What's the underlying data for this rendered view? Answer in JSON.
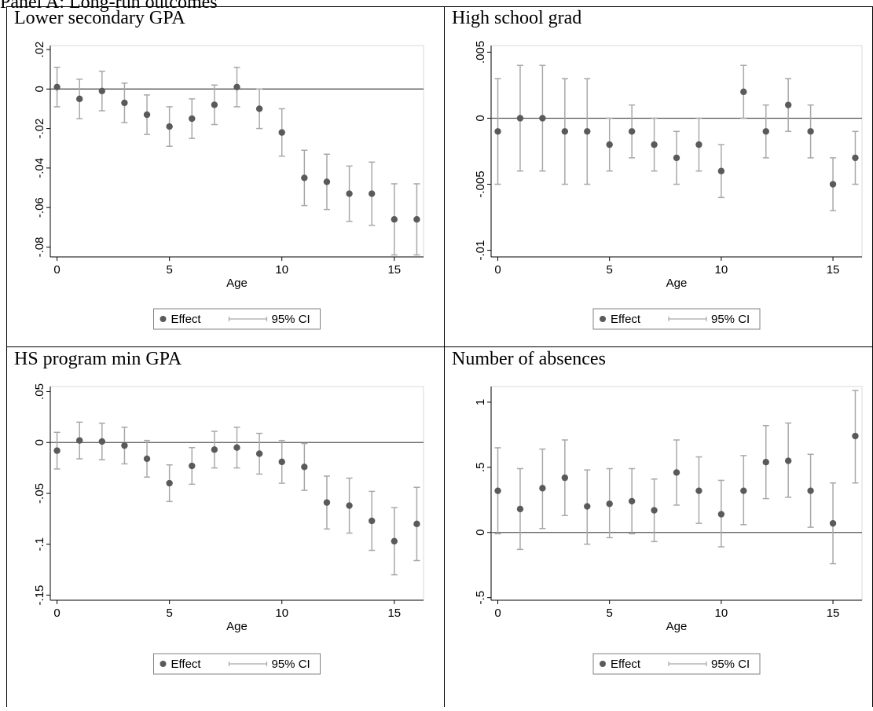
{
  "top_cropped_text": "Panel A: Long-run outcomes",
  "chart_data": [
    {
      "type": "scatter",
      "title": "Lower secondary GPA",
      "xlabel": "Age",
      "x": [
        0,
        1,
        2,
        3,
        4,
        5,
        6,
        7,
        8,
        9,
        10,
        11,
        12,
        13,
        14,
        15,
        16
      ],
      "effect": [
        0.001,
        -0.005,
        -0.001,
        -0.007,
        -0.013,
        -0.019,
        -0.015,
        -0.008,
        0.001,
        -0.01,
        -0.022,
        -0.045,
        -0.047,
        -0.053,
        -0.053,
        -0.066,
        -0.066
      ],
      "ci_low": [
        -0.009,
        -0.015,
        -0.011,
        -0.017,
        -0.023,
        -0.029,
        -0.025,
        -0.018,
        -0.009,
        -0.02,
        -0.034,
        -0.059,
        -0.061,
        -0.067,
        -0.069,
        -0.084,
        -0.084
      ],
      "ci_high": [
        0.011,
        0.005,
        0.009,
        0.003,
        -0.003,
        -0.009,
        -0.005,
        0.002,
        0.011,
        0.0,
        -0.01,
        -0.031,
        -0.033,
        -0.039,
        -0.037,
        -0.048,
        -0.048
      ],
      "yticks": [
        0.02,
        0,
        -0.02,
        -0.04,
        -0.06,
        -0.08
      ],
      "ytick_labels": [
        ".02",
        "0",
        "-.02",
        "-.04",
        "-.06",
        "-.08"
      ],
      "ylim": [
        -0.085,
        0.022
      ],
      "xticks": [
        0,
        5,
        10,
        15
      ],
      "xtick_labels": [
        "0",
        "5",
        "10",
        "15"
      ],
      "xlim": [
        -0.3,
        16.3
      ],
      "legend": [
        "Effect",
        "95% CI"
      ],
      "legend_position": "bottom",
      "zero_line": true
    },
    {
      "type": "scatter",
      "title": "High school grad",
      "xlabel": "Age",
      "x": [
        0,
        1,
        2,
        3,
        4,
        5,
        6,
        7,
        8,
        9,
        10,
        11,
        12,
        13,
        14,
        15,
        16
      ],
      "effect": [
        -0.001,
        0,
        0,
        -0.001,
        -0.001,
        -0.002,
        -0.001,
        -0.002,
        -0.003,
        -0.002,
        -0.004,
        0.002,
        -0.001,
        0.001,
        -0.001,
        -0.005,
        -0.003
      ],
      "ci_low": [
        -0.005,
        -0.004,
        -0.004,
        -0.005,
        -0.005,
        -0.004,
        -0.003,
        -0.004,
        -0.005,
        -0.004,
        -0.006,
        0,
        -0.003,
        -0.001,
        -0.003,
        -0.007,
        -0.005
      ],
      "ci_high": [
        0.003,
        0.004,
        0.004,
        0.003,
        0.003,
        0,
        0.001,
        0,
        -0.001,
        0,
        -0.002,
        0.004,
        0.001,
        0.003,
        0.001,
        -0.003,
        -0.001
      ],
      "yticks": [
        0.005,
        0,
        -0.005,
        -0.01
      ],
      "ytick_labels": [
        ".005",
        "0",
        "-.005",
        "-.01"
      ],
      "ylim": [
        -0.0105,
        0.0055
      ],
      "xticks": [
        0,
        5,
        10,
        15
      ],
      "xtick_labels": [
        "0",
        "5",
        "10",
        "15"
      ],
      "xlim": [
        -0.3,
        16.3
      ],
      "legend": [
        "Effect",
        "95% CI"
      ],
      "legend_position": "bottom",
      "zero_line": true
    },
    {
      "type": "scatter",
      "title": "HS program min GPA",
      "xlabel": "Age",
      "x": [
        0,
        1,
        2,
        3,
        4,
        5,
        6,
        7,
        8,
        9,
        10,
        11,
        12,
        13,
        14,
        15,
        16
      ],
      "effect": [
        -0.008,
        0.002,
        0.001,
        -0.003,
        -0.016,
        -0.04,
        -0.023,
        -0.007,
        -0.005,
        -0.011,
        -0.019,
        -0.024,
        -0.059,
        -0.062,
        -0.077,
        -0.097,
        -0.08
      ],
      "ci_low": [
        -0.026,
        -0.016,
        -0.017,
        -0.021,
        -0.034,
        -0.058,
        -0.041,
        -0.025,
        -0.025,
        -0.031,
        -0.04,
        -0.047,
        -0.085,
        -0.089,
        -0.106,
        -0.13,
        -0.116
      ],
      "ci_high": [
        0.01,
        0.02,
        0.019,
        0.015,
        0.002,
        -0.022,
        -0.005,
        0.011,
        0.015,
        0.009,
        0.002,
        -0.001,
        -0.033,
        -0.035,
        -0.048,
        -0.064,
        -0.044
      ],
      "yticks": [
        0.05,
        0,
        -0.05,
        -0.1,
        -0.15
      ],
      "ytick_labels": [
        ".05",
        "0",
        "-.05",
        "-.1",
        "-.15"
      ],
      "ylim": [
        -0.155,
        0.055
      ],
      "xticks": [
        0,
        5,
        10,
        15
      ],
      "xtick_labels": [
        "0",
        "5",
        "10",
        "15"
      ],
      "xlim": [
        -0.3,
        16.3
      ],
      "legend": [
        "Effect",
        "95% CI"
      ],
      "legend_position": "bottom",
      "zero_line": true
    },
    {
      "type": "scatter",
      "title": "Number of absences",
      "xlabel": "Age",
      "x": [
        0,
        1,
        2,
        3,
        4,
        5,
        6,
        7,
        8,
        9,
        10,
        11,
        12,
        13,
        14,
        15,
        16
      ],
      "effect": [
        0.32,
        0.18,
        0.34,
        0.42,
        0.2,
        0.22,
        0.24,
        0.17,
        0.46,
        0.32,
        0.14,
        0.32,
        0.54,
        0.55,
        0.32,
        0.07,
        0.74
      ],
      "ci_low": [
        -0.01,
        -0.13,
        0.03,
        0.13,
        -0.09,
        -0.04,
        -0.01,
        -0.07,
        0.21,
        0.07,
        -0.11,
        0.06,
        0.26,
        0.27,
        0.04,
        -0.24,
        0.38
      ],
      "ci_high": [
        0.65,
        0.49,
        0.64,
        0.71,
        0.48,
        0.49,
        0.49,
        0.41,
        0.71,
        0.58,
        0.4,
        0.59,
        0.82,
        0.84,
        0.6,
        0.38,
        1.09
      ],
      "yticks": [
        1,
        0.5,
        0,
        -0.5
      ],
      "ytick_labels": [
        "1",
        ".5",
        "0",
        "-.5"
      ],
      "ylim": [
        -0.52,
        1.12
      ],
      "xticks": [
        0,
        5,
        10,
        15
      ],
      "xtick_labels": [
        "0",
        "5",
        "10",
        "15"
      ],
      "xlim": [
        -0.3,
        16.3
      ],
      "legend": [
        "Effect",
        "95% CI"
      ],
      "legend_position": "bottom",
      "zero_line": true
    }
  ],
  "colors": {
    "marker": "#5a5a5a",
    "ci": "#a8a8a8",
    "axis": "#000000",
    "frame": "#808080",
    "zero_line": "#555555"
  }
}
